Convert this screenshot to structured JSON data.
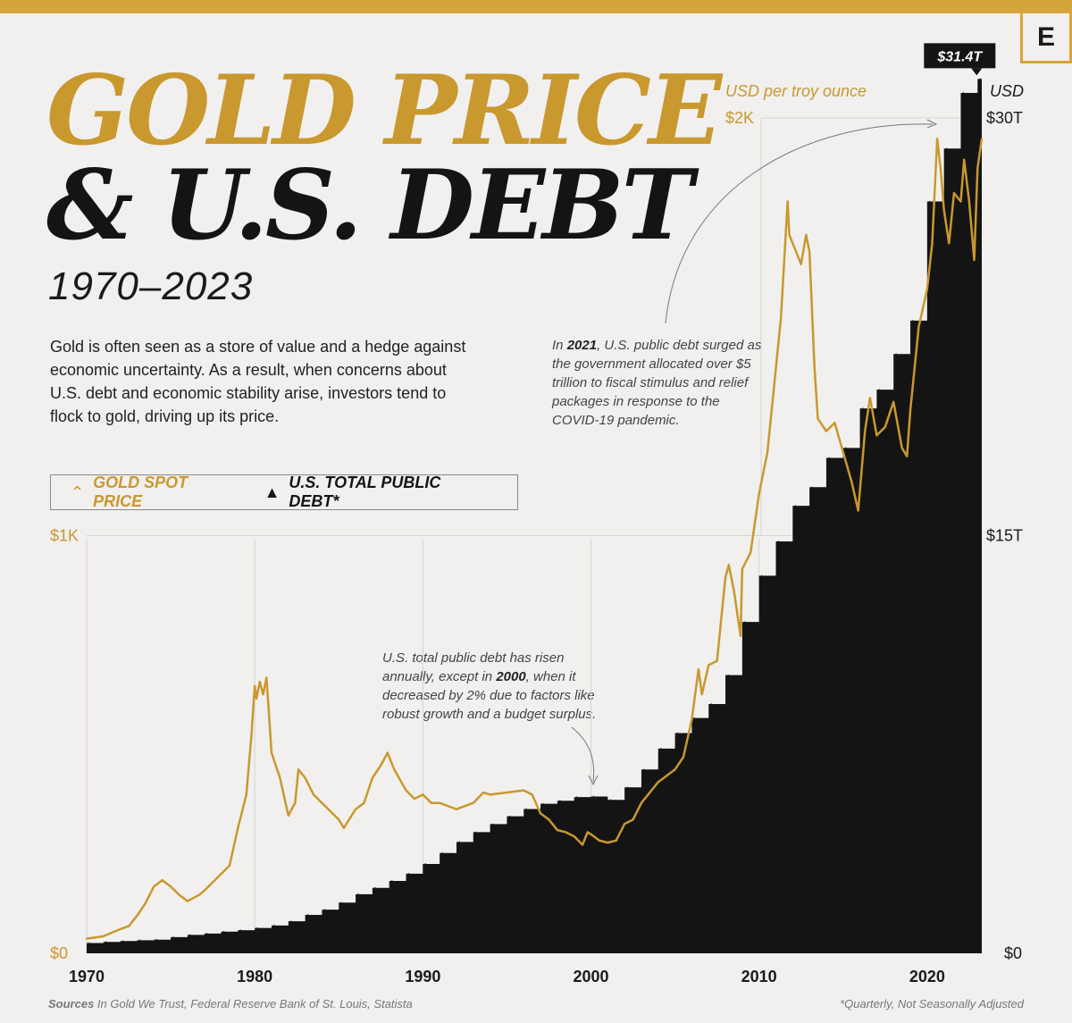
{
  "header": {
    "title_line1": "GOLD PRICE",
    "title_line2": "& U.S. DEBT",
    "subtitle": "1970–2023",
    "brand_mark": "E"
  },
  "description": "Gold is often seen as a store of value and a hedge against economic uncertainty. As a result, when concerns about U.S. debt and economic stability arise, investors tend to flock to gold, driving up its price.",
  "legend": {
    "gold_label": "GOLD SPOT PRICE",
    "debt_label": "U.S. TOTAL PUBLIC DEBT*"
  },
  "annotations": {
    "a2021": {
      "prefix": "In ",
      "bold": "2021",
      "text": ", U.S. public debt surged as the government allocated over $5 trillion to fiscal stimulus and relief packages in response to the COVID-19 pandemic."
    },
    "a2000": {
      "prefix": "U.S. total public debt has risen annually, except in ",
      "bold": "2000",
      "text": ", when it decreased by 2% due to factors like robust growth and a budget surplus."
    }
  },
  "footer": {
    "sources_label": "Sources",
    "sources_text": " In Gold We Trust, Federal Reserve Bank of St. Louis, Statista",
    "note": "*Quarterly, Not Seasonally Adjusted"
  },
  "colors": {
    "gold": "#c9982f",
    "debt": "#141414",
    "background": "#f1f0ee",
    "accent_bar": "#d4a53c"
  },
  "chart_data": {
    "type": "line",
    "title": "GOLD PRICE & U.S. DEBT",
    "subtitle": "1970–2023",
    "x_range": [
      1970,
      2023.25
    ],
    "x_ticks": [
      1970,
      1980,
      1990,
      2000,
      2010,
      2020
    ],
    "gold_axis": {
      "unit_label": "USD per troy ounce",
      "ylim": [
        0,
        2000
      ],
      "ticks": [
        {
          "value": 0,
          "label": "$0"
        },
        {
          "value": 1000,
          "label": "$1K"
        },
        {
          "value": 2000,
          "label": "$2K"
        }
      ]
    },
    "debt_axis": {
      "unit_label": "USD",
      "ylim": [
        0,
        30
      ],
      "ticks": [
        {
          "value": 0,
          "label": "$0"
        },
        {
          "value": 15,
          "label": "$15T"
        },
        {
          "value": 30,
          "label": "$30T"
        }
      ]
    },
    "callout": {
      "label": "$31.4T",
      "x": 2023,
      "value": 31.4
    },
    "series": [
      {
        "name": "GOLD SPOT PRICE",
        "kind": "line",
        "unit": "USD per troy ounce",
        "x": [
          1970,
          1971,
          1972,
          1972.5,
          1973,
          1973.5,
          1974,
          1974.5,
          1975,
          1975.5,
          1976,
          1976.7,
          1977,
          1978,
          1978.5,
          1979,
          1979.5,
          1979.8,
          1980.0,
          1980.1,
          1980.3,
          1980.5,
          1980.7,
          1981,
          1981.5,
          1982,
          1982.4,
          1982.6,
          1983,
          1983.5,
          1984,
          1985,
          1985.3,
          1986,
          1986.5,
          1987,
          1987.5,
          1987.9,
          1988.3,
          1989,
          1989.5,
          1990,
          1990.5,
          1991,
          1992,
          1993,
          1993.6,
          1994,
          1995,
          1996,
          1996.5,
          1997,
          1997.5,
          1998,
          1998.5,
          1999,
          1999.5,
          1999.8,
          2000,
          2000.5,
          2001,
          2001.5,
          2002,
          2002.5,
          2003,
          2004,
          2005,
          2005.5,
          2006,
          2006.4,
          2006.6,
          2007,
          2007.5,
          2008,
          2008.2,
          2008.5,
          2008.9,
          2009,
          2009.5,
          2010,
          2010.5,
          2011,
          2011.3,
          2011.7,
          2011.8,
          2012,
          2012.5,
          2012.8,
          2013,
          2013.3,
          2013.5,
          2014,
          2014.5,
          2015,
          2015.5,
          2015.9,
          2016.3,
          2016.6,
          2017,
          2017.5,
          2018,
          2018.5,
          2018.8,
          2019,
          2019.5,
          2020,
          2020.3,
          2020.6,
          2020.8,
          2021,
          2021.3,
          2021.6,
          2022,
          2022.2,
          2022.5,
          2022.8,
          2023,
          2023.25
        ],
        "values": [
          35,
          41,
          58,
          65,
          90,
          120,
          160,
          175,
          160,
          140,
          125,
          140,
          150,
          190,
          210,
          300,
          380,
          520,
          640,
          610,
          650,
          620,
          660,
          480,
          420,
          330,
          360,
          440,
          420,
          380,
          360,
          320,
          300,
          345,
          360,
          420,
          450,
          480,
          440,
          390,
          370,
          380,
          360,
          360,
          345,
          360,
          385,
          380,
          385,
          390,
          380,
          335,
          320,
          295,
          290,
          280,
          260,
          290,
          285,
          270,
          265,
          270,
          310,
          320,
          360,
          410,
          440,
          470,
          560,
          680,
          620,
          690,
          700,
          900,
          930,
          870,
          760,
          920,
          960,
          1100,
          1200,
          1400,
          1520,
          1800,
          1720,
          1700,
          1650,
          1720,
          1680,
          1400,
          1280,
          1250,
          1270,
          1200,
          1130,
          1060,
          1250,
          1330,
          1240,
          1260,
          1320,
          1210,
          1190,
          1300,
          1500,
          1590,
          1700,
          1950,
          1880,
          1780,
          1700,
          1820,
          1800,
          1900,
          1800,
          1660,
          1880,
          1950
        ]
      },
      {
        "name": "U.S. TOTAL PUBLIC DEBT*",
        "kind": "area",
        "unit": "USD trillions",
        "x": [
          1970,
          1971,
          1972,
          1973,
          1974,
          1975,
          1976,
          1977,
          1978,
          1979,
          1980,
          1981,
          1982,
          1983,
          1984,
          1985,
          1986,
          1987,
          1988,
          1989,
          1990,
          1991,
          1992,
          1993,
          1994,
          1995,
          1996,
          1997,
          1998,
          1999,
          2000,
          2001,
          2002,
          2003,
          2004,
          2005,
          2006,
          2007,
          2008,
          2009,
          2010,
          2011,
          2012,
          2013,
          2014,
          2015,
          2016,
          2017,
          2018,
          2019,
          2020,
          2021,
          2022,
          2023
        ],
        "values": [
          0.37,
          0.41,
          0.44,
          0.47,
          0.49,
          0.58,
          0.66,
          0.71,
          0.78,
          0.83,
          0.91,
          1.0,
          1.15,
          1.38,
          1.57,
          1.82,
          2.12,
          2.35,
          2.6,
          2.86,
          3.21,
          3.6,
          4.0,
          4.35,
          4.64,
          4.92,
          5.18,
          5.37,
          5.48,
          5.61,
          5.63,
          5.51,
          5.96,
          6.6,
          7.35,
          7.91,
          8.45,
          8.95,
          9.99,
          11.9,
          13.56,
          14.79,
          16.07,
          16.74,
          17.79,
          18.15,
          19.57,
          20.24,
          21.52,
          22.72,
          27.0,
          28.9,
          30.9,
          31.4
        ]
      }
    ]
  }
}
